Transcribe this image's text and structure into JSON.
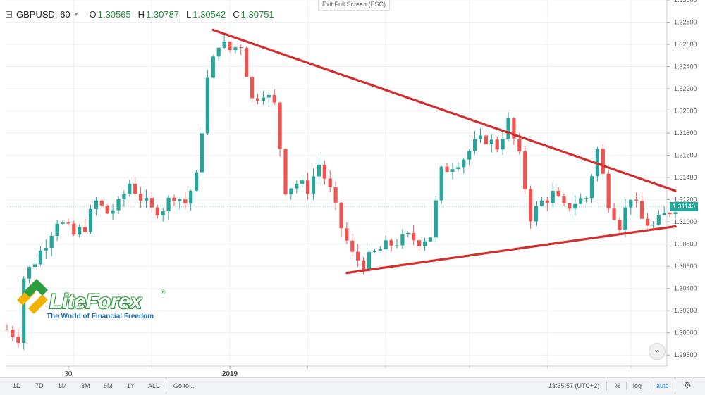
{
  "header": {
    "symbol": "GBPUSD, 60",
    "open_label": "O",
    "open": "1.30565",
    "high_label": "H",
    "high": "1.30787",
    "low_label": "L",
    "low": "1.30542",
    "close_label": "C",
    "close": "1.30751"
  },
  "exit_fullscreen": "Exit Full Screen (ESC)",
  "logo": {
    "wordmark": "LiteForex",
    "registered": "®",
    "tagline": "The World of Financial Freedom"
  },
  "current_price": "1.31140",
  "colors": {
    "up": "#26a69a",
    "down": "#ef5350",
    "trendline": "#d32f2f",
    "grid": "#eef0f3",
    "price_tag": "#26a69a"
  },
  "toolbar": {
    "ranges": [
      "1D",
      "7D",
      "1M",
      "3M",
      "6M",
      "1Y",
      "ALL"
    ],
    "goto": "Go to...",
    "time": "13:35:57 (UTC+2)",
    "percent": "%",
    "log": "log",
    "auto": "auto",
    "scroll_icon": "double-chevron-right-icon",
    "settings_icon": "gear-icon"
  },
  "chart_data": {
    "type": "candlestick",
    "symbol": "GBPUSD",
    "timeframe": "60",
    "ylim": [
      1.297,
      1.33
    ],
    "yticks": [
      1.298,
      1.3,
      1.302,
      1.304,
      1.306,
      1.308,
      1.31,
      1.312,
      1.314,
      1.316,
      1.318,
      1.32,
      1.322,
      1.324,
      1.326,
      1.328,
      1.33
    ],
    "xtick_labels": [
      {
        "index": 11,
        "label": "30"
      },
      {
        "index": 40,
        "label": "2019"
      }
    ],
    "close_path_anchors": [
      [
        0,
        1.3003
      ],
      [
        2,
        1.2996
      ],
      [
        3,
        1.305
      ],
      [
        5,
        1.3065
      ],
      [
        7,
        1.3082
      ],
      [
        9,
        1.3102
      ],
      [
        12,
        1.3088
      ],
      [
        14,
        1.3096
      ],
      [
        16,
        1.3118
      ],
      [
        18,
        1.3108
      ],
      [
        20,
        1.3115
      ],
      [
        22,
        1.3135
      ],
      [
        24,
        1.3122
      ],
      [
        26,
        1.311
      ],
      [
        28,
        1.3113
      ],
      [
        30,
        1.3125
      ],
      [
        32,
        1.3117
      ],
      [
        34,
        1.314
      ],
      [
        36,
        1.3228
      ],
      [
        38,
        1.3262
      ],
      [
        40,
        1.3255
      ],
      [
        42,
        1.326
      ],
      [
        44,
        1.321
      ],
      [
        46,
        1.3218
      ],
      [
        48,
        1.3205
      ],
      [
        50,
        1.313
      ],
      [
        52,
        1.3135
      ],
      [
        54,
        1.313
      ],
      [
        56,
        1.3152
      ],
      [
        58,
        1.3128
      ],
      [
        60,
        1.3095
      ],
      [
        62,
        1.307
      ],
      [
        64,
        1.3062
      ],
      [
        66,
        1.3072
      ],
      [
        68,
        1.3078
      ],
      [
        70,
        1.3082
      ],
      [
        72,
        1.3086
      ],
      [
        74,
        1.3083
      ],
      [
        76,
        1.3088
      ],
      [
        78,
        1.3145
      ],
      [
        80,
        1.3152
      ],
      [
        82,
        1.3158
      ],
      [
        84,
        1.317
      ],
      [
        86,
        1.3175
      ],
      [
        88,
        1.3168
      ],
      [
        90,
        1.319
      ],
      [
        92,
        1.3158
      ],
      [
        94,
        1.3105
      ],
      [
        96,
        1.3118
      ],
      [
        98,
        1.3125
      ],
      [
        100,
        1.3112
      ],
      [
        102,
        1.3118
      ],
      [
        104,
        1.3122
      ],
      [
        106,
        1.3165
      ],
      [
        108,
        1.3118
      ],
      [
        110,
        1.3098
      ],
      [
        112,
        1.3124
      ],
      [
        114,
        1.3102
      ],
      [
        116,
        1.3096
      ],
      [
        118,
        1.3106
      ],
      [
        120,
        1.3114
      ]
    ],
    "trendlines": [
      {
        "from": [
          37,
          1.3273
        ],
        "to": [
          120,
          1.3128
        ]
      },
      {
        "from": [
          61,
          1.3054
        ],
        "to": [
          120,
          1.3096
        ]
      }
    ]
  }
}
